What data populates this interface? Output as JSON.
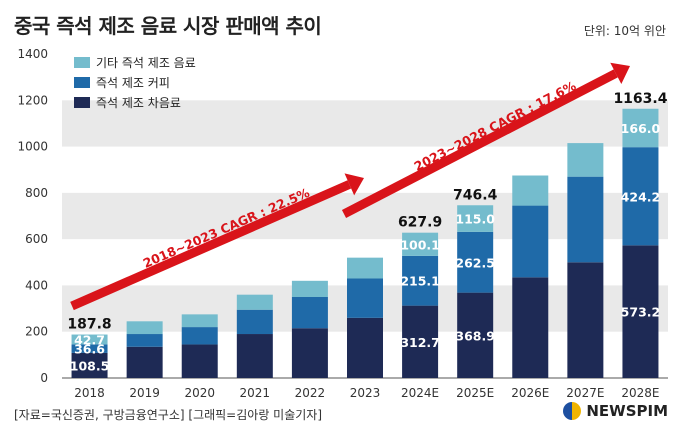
{
  "title": "중국 즉석 제조 음료 시장 판매액 추이",
  "unit": "단위: 10억 위안",
  "source": "[자료=국신증권, 구방금융연구소] [그래픽=김아랑 미술기자]",
  "logo_text": "NEWSPIM",
  "colors": {
    "tea": "#1e2a55",
    "coffee": "#1f6aa8",
    "other": "#74bccd",
    "arrow": "#d9141a",
    "grid_band": "#e9e9e9"
  },
  "chart_data": {
    "type": "bar",
    "stacked": true,
    "categories": [
      "2018",
      "2019",
      "2020",
      "2021",
      "2022",
      "2023",
      "2024E",
      "2025E",
      "2026E",
      "2027E",
      "2028E"
    ],
    "ylim": [
      0,
      1400
    ],
    "yticks": [
      0,
      200,
      400,
      600,
      800,
      1000,
      1200,
      1400
    ],
    "series": [
      {
        "name": "즉석 제조 차음료",
        "values": [
          108.5,
          135,
          145,
          190,
          215,
          260,
          312.7,
          368.9,
          435,
          500,
          573.2
        ]
      },
      {
        "name": "즉석 제조 커피",
        "values": [
          36.6,
          55,
          75,
          105,
          135,
          170,
          215.1,
          262.5,
          310,
          370,
          424.2
        ]
      },
      {
        "name": "기타 즉석 제조 음료",
        "values": [
          42.7,
          55,
          55,
          65,
          70,
          90,
          100.1,
          115.0,
          130,
          145,
          166.0
        ]
      }
    ],
    "segment_labels": {
      "0": [
        "108.5",
        "36.6",
        "42.7"
      ],
      "6": [
        "312.7",
        "215.1",
        "100.1"
      ],
      "7": [
        "368.9",
        "262.5",
        "115.0"
      ],
      "10": [
        "573.2",
        "424.2",
        "166.0"
      ]
    },
    "total_labels": {
      "0": "187.8",
      "6": "627.9",
      "7": "746.4",
      "10": "1163.4"
    },
    "annotations": [
      {
        "text": "2018~2023 CAGR : 22.5%"
      },
      {
        "text": "2023~2028 CAGR : 17.6%"
      }
    ]
  }
}
